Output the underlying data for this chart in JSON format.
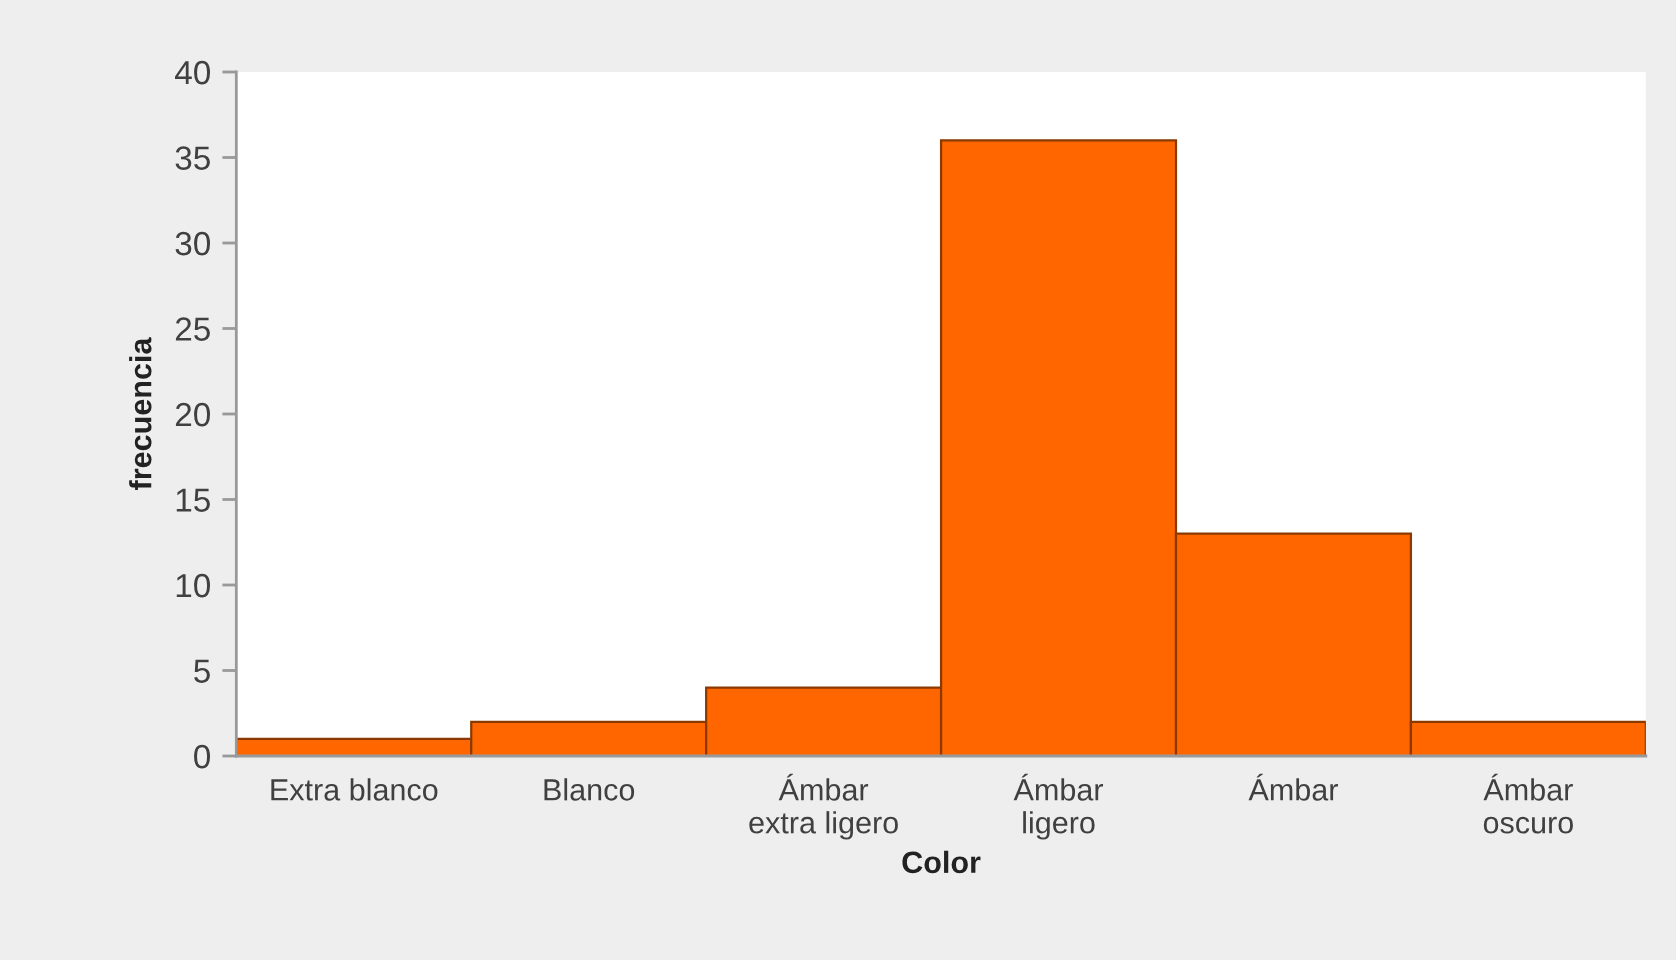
{
  "chart_data": {
    "type": "bar",
    "xlabel": "Color",
    "ylabel": "frecuencia",
    "categories": [
      "Extra blanco",
      "Blanco",
      "Ámbar\nextra ligero",
      "Ámbar\nligero",
      "Ámbar",
      "Ámbar\noscuro"
    ],
    "values": [
      1,
      2,
      4,
      36,
      13,
      2
    ],
    "color": "#ff6600",
    "ylim": [
      0,
      40
    ],
    "yticks": [
      0,
      5,
      10,
      15,
      20,
      25,
      30,
      35,
      40
    ]
  }
}
